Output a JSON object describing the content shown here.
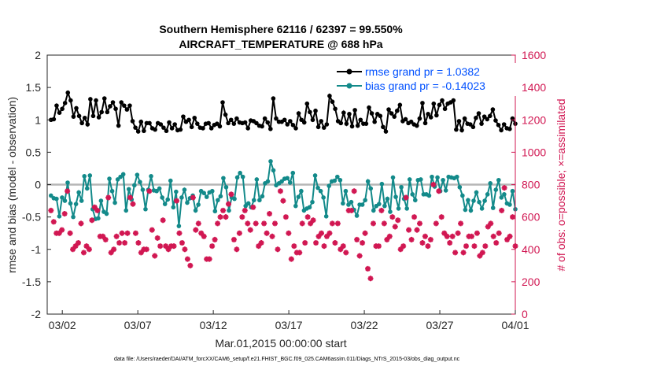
{
  "chart_data": {
    "type": "line",
    "title": "Southern Hemisphere 62116 / 62397 = 99.550%",
    "subtitle": "AIRCRAFT_TEMPERATURE @ 688 hPa",
    "xlabel": "Mar.01,2015 00:00:00 start",
    "ylabel": "rmse and bias (model - observation)",
    "y2label": "# of obs: o=possible; ×=assimilated",
    "footer": "data file: /Users/raeder/DAI/ATM_forcXX/CAM6_setup/f.e21.FHIST_BGC.f09_025.CAM6assim.011/Diags_NTrS_2015-03/obs_diag_output.nc",
    "x_ticks": [
      "03/02",
      "03/07",
      "03/12",
      "03/17",
      "03/22",
      "03/27",
      "04/01"
    ],
    "x_tick_days": [
      1,
      6,
      11,
      16,
      21,
      26,
      31
    ],
    "xlim_days": [
      0,
      31
    ],
    "ylim": [
      -2,
      2
    ],
    "y_ticks": [
      "-2",
      "-1.5",
      "-1",
      "-0.5",
      "0",
      "0.5",
      "1",
      "1.5",
      "2"
    ],
    "y2lim": [
      0,
      1600
    ],
    "y2_ticks": [
      "0",
      "200",
      "400",
      "600",
      "800",
      "1000",
      "1200",
      "1400",
      "1600"
    ],
    "series": [
      {
        "name": "rmse grand pr = 1.0382",
        "color": "#000000",
        "marker": "circle",
        "axis": "left",
        "values": [
          1.0,
          1.01,
          1.22,
          1.11,
          1.17,
          1.26,
          1.42,
          1.3,
          1.05,
          1.18,
          1.06,
          0.95,
          1.03,
          0.93,
          1.32,
          1.06,
          1.3,
          1.04,
          1.12,
          1.33,
          1.12,
          1.21,
          1.27,
          1.17,
          0.91,
          1.27,
          1.22,
          1.16,
          1.22,
          0.98,
          0.88,
          0.82,
          0.97,
          0.83,
          0.95,
          0.95,
          0.87,
          0.85,
          0.95,
          0.93,
          0.88,
          0.83,
          0.96,
          0.87,
          0.93,
          0.84,
          0.85,
          1.05,
          0.97,
          1.0,
          0.89,
          1.03,
          0.94,
          0.88,
          0.87,
          0.94,
          0.95,
          0.87,
          0.92,
          0.94,
          0.9,
          1.27,
          1.08,
          0.95,
          1.0,
          0.94,
          1.02,
          0.96,
          0.95,
          0.96,
          0.87,
          0.99,
          0.98,
          0.95,
          0.91,
          0.9,
          1.02,
          0.96,
          0.86,
          1.33,
          1.02,
          0.97,
          0.97,
          1.0,
          0.93,
          0.98,
          0.92,
          0.87,
          1.1,
          1.0,
          0.96,
          1.25,
          1.12,
          1.0,
          1.14,
          0.89,
          0.98,
          0.88,
          0.93,
          1.37,
          1.28,
          1.17,
          0.98,
          0.95,
          1.11,
          0.94,
          1.09,
          0.9,
          1.15,
          0.91,
          1.0,
          0.94,
          0.94,
          1.19,
          1.1,
          0.97,
          1.09,
          1.06,
          0.89,
          0.82,
          1.16,
          1.1,
          1.05,
          1.14,
          1.23,
          0.98,
          1.01,
          0.95,
          0.97,
          0.93,
          0.91,
          1.02,
          1.26,
          0.95,
          1.09,
          1.04,
          1.25,
          1.07,
          1.23,
          1.3,
          1.17,
          1.25,
          1.27,
          1.3,
          0.85,
          0.98,
          0.84,
          1.02,
          0.94,
          0.93,
          0.89,
          1.03,
          1.1,
          0.94,
          1.05,
          1.01,
          1.06,
          1.16,
          0.99,
          0.92,
          0.84,
          0.93,
          0.87,
          0.86,
          1.02,
          0.94
        ]
      },
      {
        "name": "bias grand pr = -0.14023",
        "color": "#138a8a",
        "marker": "circle",
        "axis": "left",
        "values": [
          -0.17,
          -0.21,
          -0.22,
          -0.49,
          -0.2,
          -0.25,
          0.03,
          -0.29,
          -0.5,
          -0.3,
          -0.12,
          -0.25,
          0.13,
          -0.06,
          0.14,
          -0.38,
          -0.53,
          -0.52,
          -0.25,
          -0.42,
          -0.45,
          0.09,
          -0.1,
          -0.28,
          0.08,
          0.12,
          0.16,
          -0.4,
          -0.07,
          -0.23,
          -0.01,
          0.15,
          0.04,
          -0.08,
          -0.38,
          -0.08,
          0.13,
          -0.09,
          -0.1,
          -0.06,
          -0.2,
          -0.3,
          -0.23,
          0.06,
          -0.35,
          -0.11,
          -0.64,
          -0.2,
          -0.08,
          -0.28,
          -0.21,
          -0.17,
          -0.4,
          -0.31,
          -0.1,
          -0.13,
          -0.19,
          -0.12,
          -0.1,
          -0.41,
          -0.24,
          -0.18,
          0.1,
          -0.04,
          -0.4,
          -0.2,
          -0.22,
          0.11,
          0.18,
          0.12,
          -0.33,
          -0.29,
          -0.35,
          -0.24,
          0.08,
          -0.24,
          -0.18,
          0.02,
          0.05,
          0.36,
          0.22,
          -0.01,
          0.02,
          0.05,
          0.09,
          0.1,
          0.03,
          0.18,
          -0.33,
          -0.19,
          -0.1,
          -0.4,
          -0.37,
          -0.35,
          -0.27,
          0.14,
          -0.05,
          -0.1,
          -0.2,
          -0.49,
          -0.02,
          0.05,
          0.06,
          0.12,
          0.07,
          -0.29,
          -0.1,
          -0.31,
          -0.27,
          -0.39,
          -0.48,
          -0.31,
          -0.31,
          -0.24,
          0.05,
          -0.06,
          -0.4,
          -0.33,
          -0.3,
          0.01,
          -0.33,
          -0.22,
          -0.42,
          0.11,
          -0.19,
          -0.37,
          -0.04,
          -0.22,
          -0.37,
          0.08,
          -0.15,
          -0.24,
          0.07,
          0.08,
          -0.15,
          -0.15,
          -0.17,
          0.12,
          -0.03,
          0.11,
          -0.1,
          0.07,
          -0.09,
          0.12,
          0.11,
          0.1,
          0.12,
          -0.04,
          -0.17,
          -0.39,
          -0.24,
          -0.4,
          -0.25,
          -0.12,
          -0.27,
          -0.37,
          -0.25,
          -0.15,
          0.02,
          -0.36,
          -0.08,
          0.07,
          -0.2,
          -0.15,
          -0.29,
          -0.31,
          -0.1,
          -0.38
        ]
      },
      {
        "name": "obs possible / assimilated",
        "color": "#d11752",
        "marker": "star",
        "axis": "right",
        "values": [
          640,
          570,
          500,
          500,
          520,
          620,
          760,
          500,
          400,
          420,
          440,
          560,
          380,
          420,
          400,
          580,
          660,
          640,
          480,
          480,
          460,
          720,
          380,
          400,
          480,
          440,
          500,
          440,
          500,
          720,
          680,
          500,
          440,
          380,
          400,
          400,
          760,
          520,
          360,
          470,
          420,
          580,
          420,
          400,
          420,
          420,
          700,
          500,
          440,
          400,
          340,
          300,
          720,
          520,
          560,
          500,
          480,
          340,
          340,
          420,
          460,
          560,
          600,
          640,
          600,
          680,
          740,
          460,
          400,
          500,
          600,
          640,
          560,
          520,
          660,
          560,
          420,
          440,
          560,
          500,
          620,
          480,
          560,
          400,
          760,
          700,
          600,
          500,
          340,
          420,
          380,
          380,
          560,
          440,
          600,
          560,
          580,
          440,
          480,
          500,
          420,
          480,
          500,
          560,
          440,
          560,
          400,
          420,
          380,
          640,
          640,
          760,
          460,
          360,
          440,
          500,
          280,
          220,
          560,
          420,
          420,
          640,
          560,
          460,
          480,
          600,
          540,
          580,
          400,
          420,
          720,
          520,
          460,
          600,
          520,
          560,
          440,
          480,
          420,
          460,
          800,
          560,
          760,
          600,
          500,
          480,
          440,
          480,
          380,
          500,
          560,
          380,
          420,
          480,
          480,
          420,
          500,
          360,
          380,
          420,
          540,
          560,
          480,
          440,
          500,
          640,
          780,
          460,
          480,
          600,
          420
        ]
      }
    ],
    "legend": [
      "rmse grand pr = 1.0382",
      "bias grand pr = -0.14023"
    ],
    "legend_position": "top-right",
    "zero_line": true,
    "grid": false
  }
}
